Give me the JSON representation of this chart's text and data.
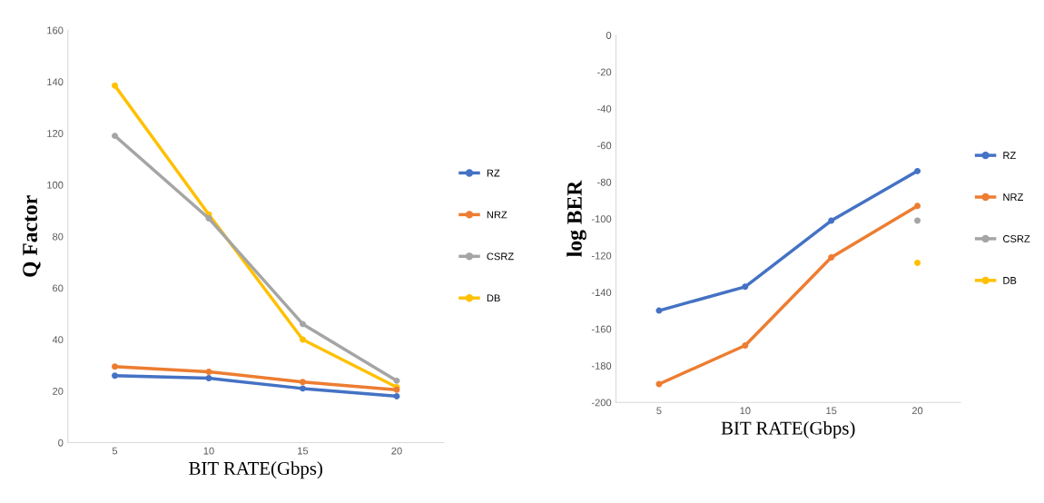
{
  "chart_data": [
    {
      "type": "line",
      "xlabel": "BIT RATE(Gbps)",
      "ylabel": "Q Factor",
      "categories": [
        "5",
        "10",
        "15",
        "20"
      ],
      "ylim": [
        0,
        160
      ],
      "yticks": [
        0,
        20,
        40,
        60,
        80,
        100,
        120,
        140,
        160
      ],
      "grid": false,
      "legend": "right",
      "marker": "circle",
      "line_style": "solid",
      "series": [
        {
          "name": "RZ",
          "color": "#4472c4",
          "values": [
            26,
            25,
            21,
            18
          ]
        },
        {
          "name": "NRZ",
          "color": "#ed7d31",
          "values": [
            29.5,
            27.5,
            23.5,
            20.5
          ]
        },
        {
          "name": "CSRZ",
          "color": "#a5a5a5",
          "values": [
            119,
            87,
            46,
            24
          ]
        },
        {
          "name": "DB",
          "color": "#ffc000",
          "values": [
            138.5,
            88.5,
            40,
            21.5
          ]
        }
      ]
    },
    {
      "type": "line",
      "xlabel": "BIT RATE(Gbps)",
      "ylabel": "log BER",
      "categories": [
        "5",
        "10",
        "15",
        "20"
      ],
      "ylim": [
        -200,
        0
      ],
      "yticks": [
        -200,
        -180,
        -160,
        -140,
        -120,
        -100,
        -80,
        -60,
        -40,
        -20,
        0
      ],
      "grid": false,
      "legend": "right",
      "marker": "circle",
      "line_style": "solid",
      "series": [
        {
          "name": "RZ",
          "color": "#4472c4",
          "values": [
            -150,
            -137,
            -101,
            -74
          ]
        },
        {
          "name": "NRZ",
          "color": "#ed7d31",
          "values": [
            -190,
            -169,
            -121,
            -93
          ]
        },
        {
          "name": "CSRZ",
          "color": "#a5a5a5",
          "values": [
            null,
            null,
            null,
            -101
          ]
        },
        {
          "name": "DB",
          "color": "#ffc000",
          "values": [
            null,
            null,
            null,
            -124
          ]
        }
      ]
    }
  ]
}
